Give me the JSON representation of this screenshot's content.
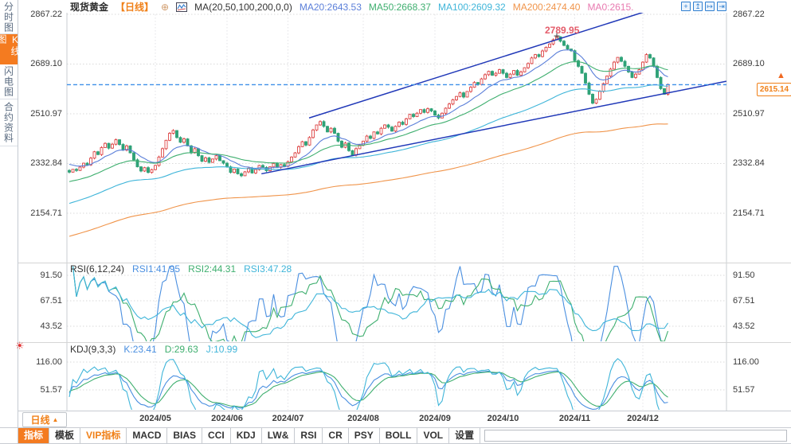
{
  "sidebar": {
    "tabs": [
      {
        "name": "minute-chart",
        "label": "分时图",
        "active": false
      },
      {
        "name": "kline-chart",
        "label": "K线图",
        "active": true
      },
      {
        "name": "lightning-chart",
        "label": "闪电图",
        "active": false
      },
      {
        "name": "contract-info",
        "label": "合约资料",
        "active": false
      }
    ]
  },
  "header": {
    "symbol": "现货黄金",
    "period": "【日线】",
    "compare_icon": "⊕",
    "ma_settings": "MA(20,50,100,200,0,0)",
    "ma_legend": [
      {
        "text": "MA20:2643.53",
        "color": "#5b7fd9"
      },
      {
        "text": "MA50:2668.37",
        "color": "#3faf6f"
      },
      {
        "text": "MA100:2609.32",
        "color": "#3fb5d9"
      },
      {
        "text": "MA200:2474.40",
        "color": "#f0944a"
      },
      {
        "text": "MA0:2615.",
        "color": "#e87ab0"
      }
    ],
    "window_icons": [
      {
        "name": "pan-crosshair-icon",
        "glyph": "+"
      },
      {
        "name": "y-axis-scale-icon",
        "glyph": "↥"
      },
      {
        "name": "x-axis-scale-icon",
        "glyph": "↦"
      },
      {
        "name": "shift-chart-right-icon",
        "glyph": "⇥"
      }
    ],
    "icon_color": "#2f7fd0"
  },
  "price_axis": {
    "current": {
      "value": "2615.14",
      "color": "#f08018"
    },
    "arrow_glyph": "▲"
  },
  "rsi_header": {
    "label": "RSI(6,12,24)",
    "values": [
      {
        "text": "RSI1:41.95",
        "color": "#4a8fe0"
      },
      {
        "text": "RSI2:44.31",
        "color": "#3faf6f"
      },
      {
        "text": "RSI3:47.28",
        "color": "#3fb5d9"
      }
    ]
  },
  "kdj_header": {
    "label": "KDJ(9,3,3)",
    "sun_icon": "☀",
    "values": [
      {
        "text": "K:23.41",
        "color": "#4a8fe0"
      },
      {
        "text": "D:29.63",
        "color": "#3faf6f"
      },
      {
        "text": "J:10.99",
        "color": "#3fb5d9"
      }
    ]
  },
  "date_axis": {
    "period_button": {
      "label": "日线",
      "arrow": "▲"
    }
  },
  "toolbar": {
    "items": [
      {
        "name": "indicator",
        "label": "指标",
        "style": "active"
      },
      {
        "name": "template",
        "label": "模板",
        "style": "normal"
      },
      {
        "name": "vip-indicator",
        "label": "VIP指标",
        "style": "vip"
      },
      {
        "name": "macd",
        "label": "MACD",
        "style": "normal"
      },
      {
        "name": "bias",
        "label": "BIAS",
        "style": "normal"
      },
      {
        "name": "cci",
        "label": "CCI",
        "style": "normal"
      },
      {
        "name": "kdj",
        "label": "KDJ",
        "style": "normal"
      },
      {
        "name": "lw",
        "label": "LW&",
        "style": "normal"
      },
      {
        "name": "rsi",
        "label": "RSI",
        "style": "normal"
      },
      {
        "name": "cr",
        "label": "CR",
        "style": "normal"
      },
      {
        "name": "psy",
        "label": "PSY",
        "style": "normal"
      },
      {
        "name": "boll",
        "label": "BOLL",
        "style": "normal"
      },
      {
        "name": "vol",
        "label": "VOL",
        "style": "normal"
      },
      {
        "name": "settings",
        "label": "设置",
        "style": "normal"
      }
    ]
  },
  "chart_data": [
    {
      "id": "main",
      "type": "candlestick",
      "title": "现货黄金 日线",
      "y_tick_labels": [
        "2867.22",
        "2689.10",
        "2510.97",
        "2332.84",
        "2154.71"
      ],
      "x_tick_labels": [
        "2024/05",
        "2024/06",
        "2024/07",
        "2024/08",
        "2024/09",
        "2024/10",
        "2024/11",
        "2024/12"
      ],
      "x_tick_indices": [
        24,
        44,
        61,
        82,
        102,
        121,
        141,
        160
      ],
      "closes": [
        2302,
        2312,
        2308,
        2320,
        2334,
        2328,
        2352,
        2375,
        2365,
        2390,
        2405,
        2388,
        2402,
        2418,
        2401,
        2381,
        2396,
        2371,
        2346,
        2321,
        2306,
        2318,
        2301,
        2311,
        2326,
        2356,
        2386,
        2416,
        2441,
        2451,
        2426,
        2409,
        2421,
        2396,
        2371,
        2386,
        2361,
        2341,
        2353,
        2337,
        2349,
        2361,
        2343,
        2334,
        2321,
        2301,
        2313,
        2296,
        2289,
        2303,
        2316,
        2299,
        2311,
        2326,
        2319,
        2307,
        2321,
        2333,
        2319,
        2329,
        2323,
        2339,
        2356,
        2371,
        2393,
        2411,
        2399,
        2426,
        2453,
        2471,
        2483,
        2466,
        2446,
        2459,
        2441,
        2413,
        2391,
        2406,
        2379,
        2363,
        2386,
        2399,
        2413,
        2431,
        2423,
        2446,
        2439,
        2459,
        2471,
        2463,
        2449,
        2466,
        2481,
        2473,
        2493,
        2509,
        2501,
        2513,
        2526,
        2516,
        2529,
        2521,
        2506,
        2496,
        2513,
        2531,
        2546,
        2561,
        2573,
        2586,
        2571,
        2591,
        2606,
        2623,
        2616,
        2636,
        2651,
        2663,
        2649,
        2656,
        2669,
        2656,
        2641,
        2653,
        2666,
        2649,
        2661,
        2676,
        2691,
        2711,
        2723,
        2716,
        2736,
        2749,
        2761,
        2776,
        2787,
        2771,
        2756,
        2743,
        2737,
        2701,
        2681,
        2656,
        2621,
        2581,
        2549,
        2563,
        2591,
        2619,
        2646,
        2671,
        2696,
        2713,
        2699,
        2681,
        2661,
        2641,
        2653,
        2669,
        2696,
        2723,
        2711,
        2681,
        2641,
        2601,
        2581,
        2615.14
      ],
      "last_price": 2615.14,
      "peak_annotation": {
        "index": 136,
        "high": 2789.95,
        "label": "2789.95",
        "color": "#e45c6a"
      },
      "moving_averages": [
        {
          "name": "MA20",
          "color": "#5b7fd9",
          "start": 2330,
          "end": 2643.53,
          "alpha": 0.16
        },
        {
          "name": "MA50",
          "color": "#3faf6f",
          "start": 2268,
          "end": 2668.37,
          "alpha": 0.065
        },
        {
          "name": "MA100",
          "color": "#3fb5d9",
          "start": 2190,
          "end": 2609.32,
          "alpha": 0.035
        },
        {
          "name": "MA200",
          "color": "#f0944a",
          "start": 2072,
          "end": 2474.4,
          "alpha": 0.018
        }
      ],
      "trendlines": [
        {
          "from": {
            "index": 66.9,
            "price": 2496.0
          },
          "to": {
            "index": 161.1,
            "price": 2878.6
          },
          "color": "#2038b8"
        },
        {
          "from": {
            "index": 53.6,
            "price": 2296.0
          },
          "to": {
            "index": 183.3,
            "price": 2627.5
          },
          "color": "#2038b8"
        }
      ],
      "current_price_line": {
        "price": 2615.14,
        "color": "#3f8fe8"
      },
      "up_color": "#dd4444",
      "down_color": "#2fa277"
    },
    {
      "id": "rsi",
      "type": "line",
      "indicator": "RSI",
      "params": [
        6,
        12,
        24
      ],
      "y_tick_labels": [
        "91.50",
        "67.51",
        "43.52"
      ],
      "current": [
        41.95,
        44.31,
        47.28
      ],
      "colors": [
        "#4a8fe0",
        "#3faf6f",
        "#3fb5d9"
      ],
      "source": "computed from main closes"
    },
    {
      "id": "kdj",
      "type": "line",
      "indicator": "KDJ",
      "params": [
        9,
        3,
        3
      ],
      "y_tick_labels": [
        "116.00",
        "51.57"
      ],
      "current": {
        "K": 23.41,
        "D": 29.63,
        "J": 10.99
      },
      "colors": [
        "#4a8fe0",
        "#3faf6f",
        "#3fb5d9"
      ],
      "source": "computed from main closes"
    }
  ]
}
